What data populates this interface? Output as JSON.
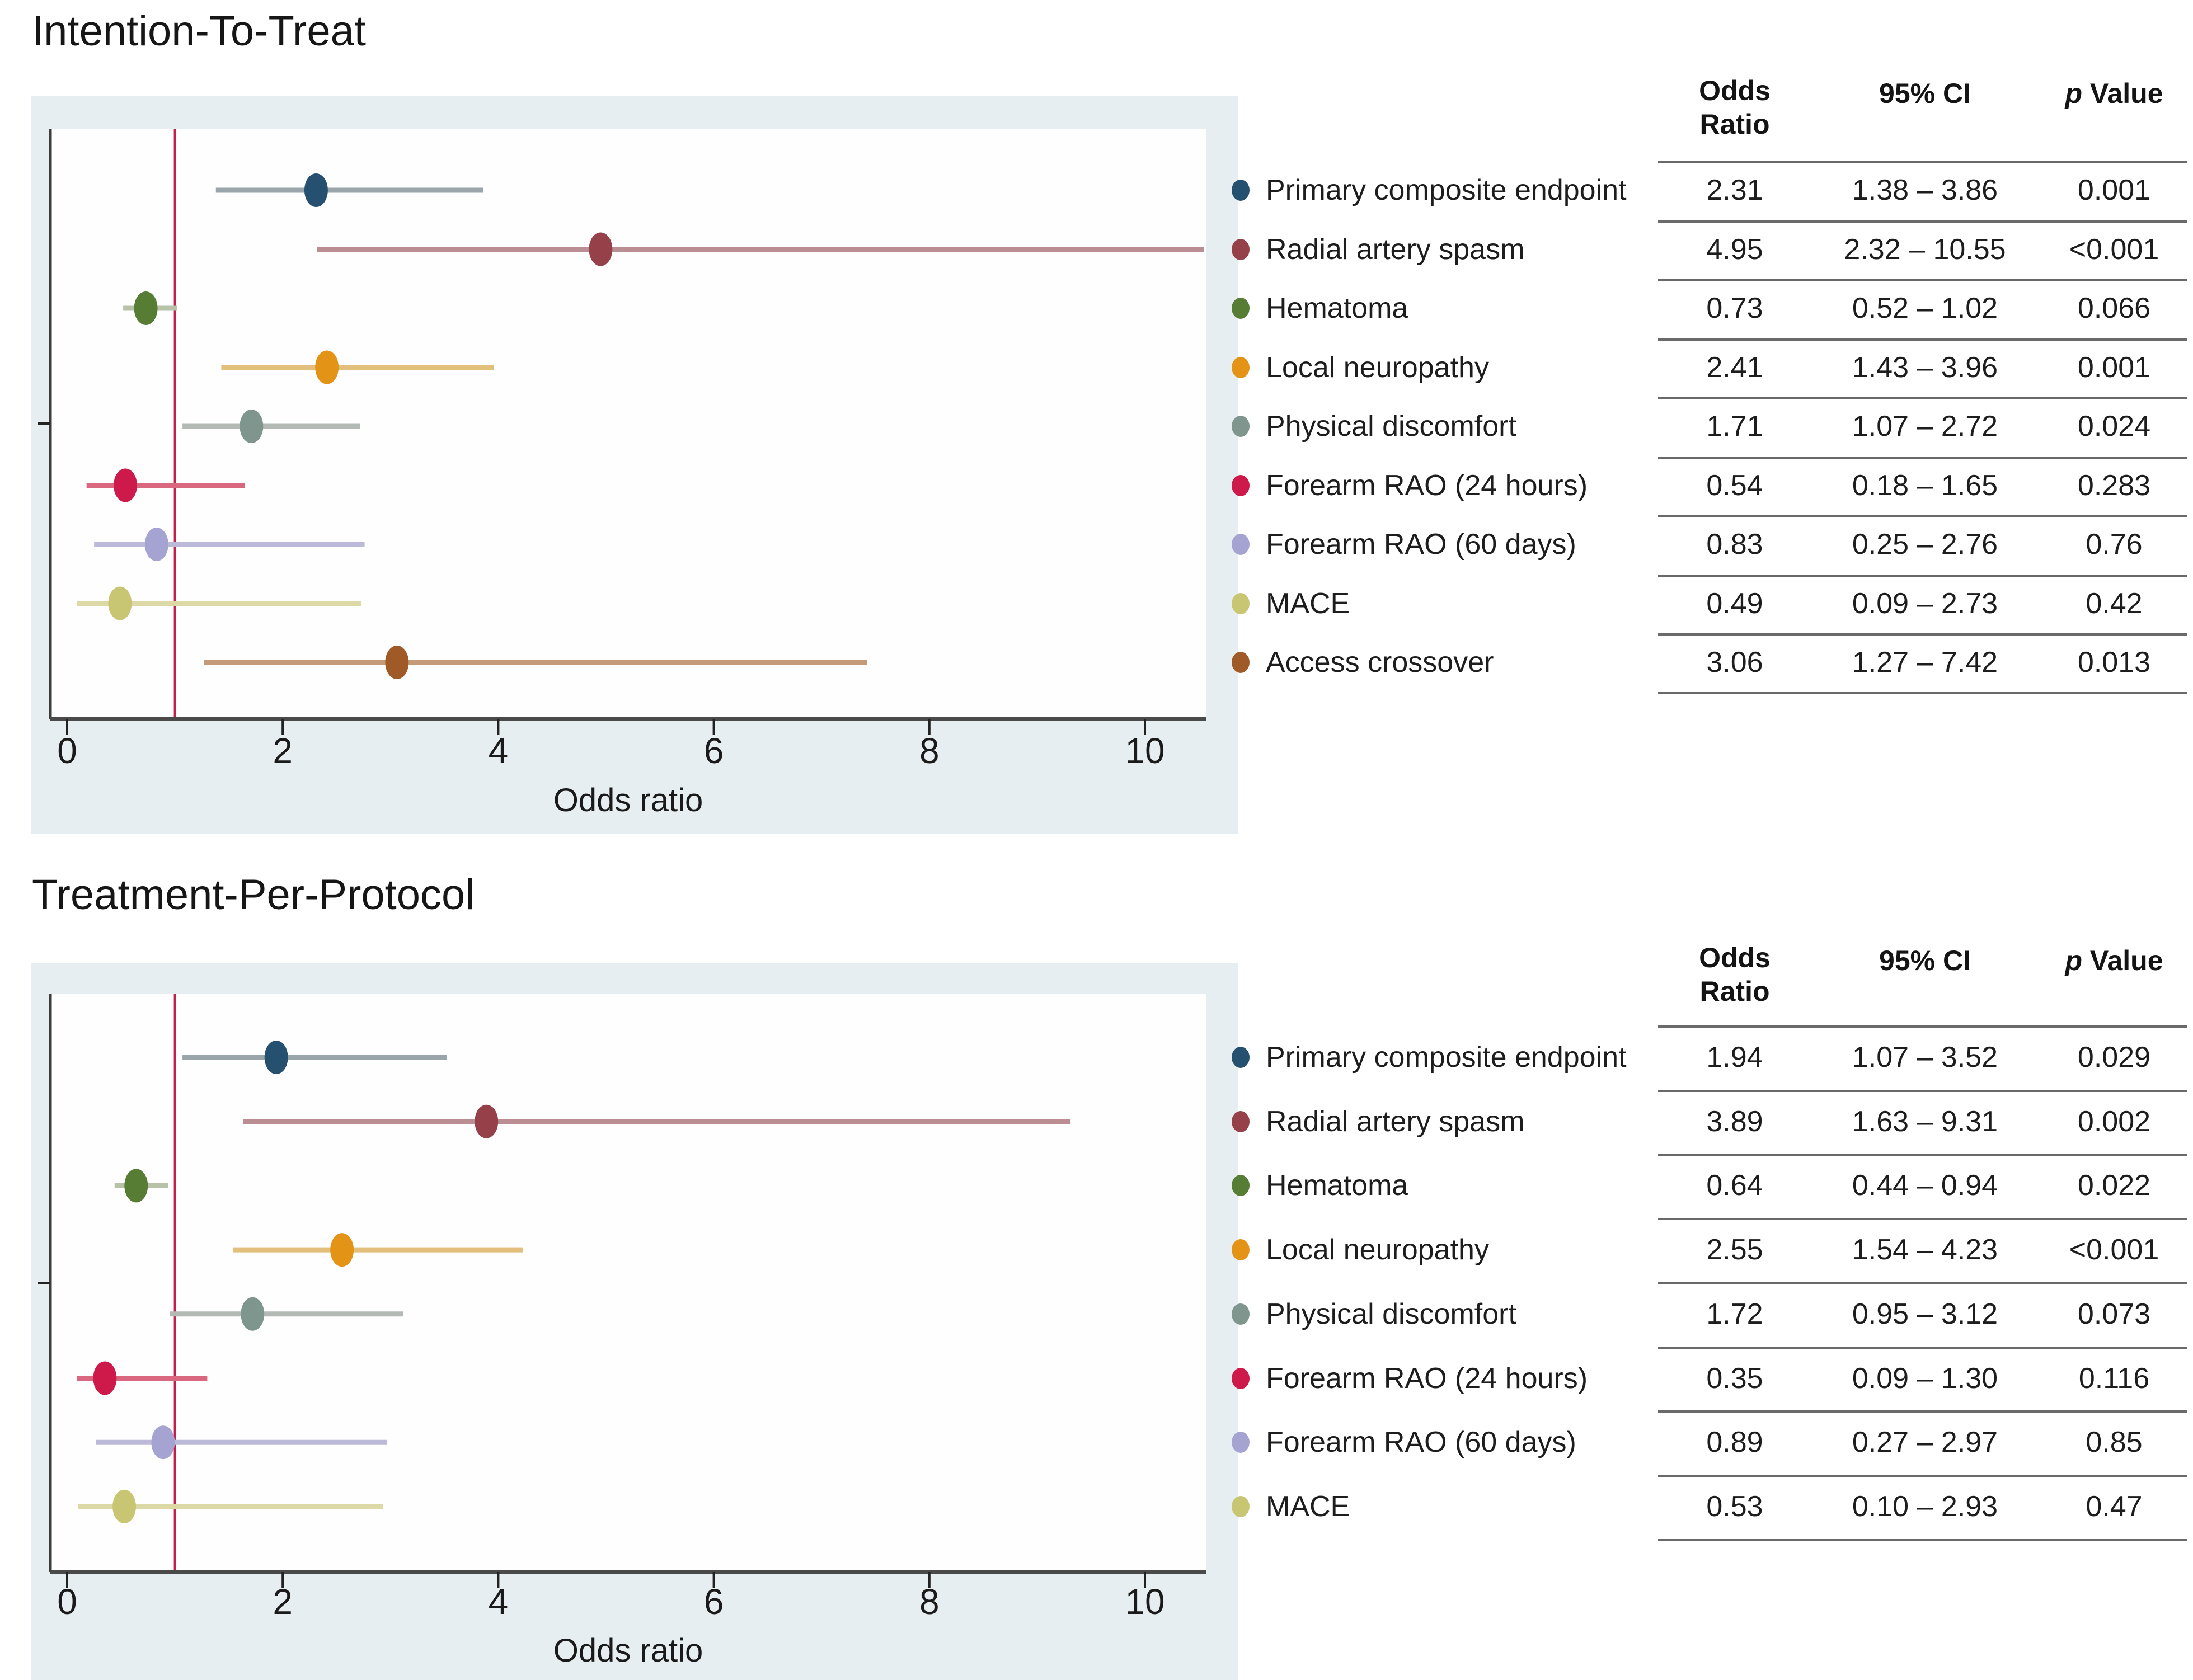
{
  "figure": {
    "panels": [
      {
        "title": "Intention-To-Treat",
        "table_headers": {
          "or": "Odds Ratio",
          "ci": "95% CI",
          "p_italic": "p",
          "p_rest": " Value"
        },
        "rows": [
          {
            "label": "Primary composite endpoint",
            "or_text": "2.31",
            "ci_text": "1.38 – 3.86",
            "p_text": "0.001"
          },
          {
            "label": "Radial artery spasm",
            "or_text": "4.95",
            "ci_text": "2.32 – 10.55",
            "p_text": "<0.001"
          },
          {
            "label": "Hematoma",
            "or_text": "0.73",
            "ci_text": "0.52 – 1.02",
            "p_text": "0.066"
          },
          {
            "label": "Local neuropathy",
            "or_text": "2.41",
            "ci_text": "1.43 – 3.96",
            "p_text": "0.001"
          },
          {
            "label": "Physical discomfort",
            "or_text": "1.71",
            "ci_text": "1.07 – 2.72",
            "p_text": "0.024"
          },
          {
            "label": "Forearm RAO (24 hours)",
            "or_text": "0.54",
            "ci_text": "0.18 – 1.65",
            "p_text": "0.283"
          },
          {
            "label": "Forearm RAO (60 days)",
            "or_text": "0.83",
            "ci_text": "0.25 – 2.76",
            "p_text": "0.76"
          },
          {
            "label": "MACE",
            "or_text": "0.49",
            "ci_text": "0.09 – 2.73",
            "p_text": "0.42"
          },
          {
            "label": "Access crossover",
            "or_text": "3.06",
            "ci_text": "1.27 – 7.42",
            "p_text": "0.013"
          }
        ]
      },
      {
        "title": "Treatment-Per-Protocol",
        "table_headers": {
          "or": "Odds Ratio",
          "ci": "95% CI",
          "p_italic": "p",
          "p_rest": " Value"
        },
        "rows": [
          {
            "label": "Primary composite endpoint",
            "or_text": "1.94",
            "ci_text": "1.07 – 3.52",
            "p_text": "0.029"
          },
          {
            "label": "Radial artery spasm",
            "or_text": "3.89",
            "ci_text": "1.63 – 9.31",
            "p_text": "0.002"
          },
          {
            "label": "Hematoma",
            "or_text": "0.64",
            "ci_text": "0.44 – 0.94",
            "p_text": "0.022"
          },
          {
            "label": "Local neuropathy",
            "or_text": "2.55",
            "ci_text": "1.54 – 4.23",
            "p_text": "<0.001"
          },
          {
            "label": "Physical discomfort",
            "or_text": "1.72",
            "ci_text": "0.95 – 3.12",
            "p_text": "0.073"
          },
          {
            "label": "Forearm RAO (24 hours)",
            "or_text": "0.35",
            "ci_text": "0.09 – 1.30",
            "p_text": "0.116"
          },
          {
            "label": "Forearm RAO (60 days)",
            "or_text": "0.89",
            "ci_text": "0.27 – 2.97",
            "p_text": "0.85"
          },
          {
            "label": "MACE",
            "or_text": "0.53",
            "ci_text": "0.10 – 2.93",
            "p_text": "0.47"
          }
        ]
      }
    ]
  },
  "chart_data": [
    {
      "type": "scatter",
      "subtype": "forest-plot",
      "title": "Intention-To-Treat",
      "xlabel": "Odds ratio",
      "xlim": [
        -0.16,
        10.57
      ],
      "x_ticks": [
        0,
        2,
        4,
        6,
        8,
        10
      ],
      "x_tick_labels": [
        "0",
        "2",
        "4",
        "6",
        "8",
        "10"
      ],
      "grid": false,
      "ref_line_x": 1,
      "ref_line_color": "#c41f4a",
      "plot_bg": "#fefefe",
      "band_bg": "#e7eef1",
      "series": [
        {
          "name": "Primary composite endpoint",
          "or": 2.31,
          "ci_lo": 1.38,
          "ci_hi": 3.86,
          "p": "0.001",
          "marker_color": "#265070",
          "ci_color": "#9aa5ab"
        },
        {
          "name": "Radial artery spasm",
          "or": 4.95,
          "ci_lo": 2.32,
          "ci_hi": 10.55,
          "p": "<0.001",
          "marker_color": "#96404a",
          "ci_color": "#bb8e94"
        },
        {
          "name": "Hematoma",
          "or": 0.73,
          "ci_lo": 0.52,
          "ci_hi": 1.02,
          "p": "0.066",
          "marker_color": "#567d33",
          "ci_color": "#b7c2a8"
        },
        {
          "name": "Local neuropathy",
          "or": 2.41,
          "ci_lo": 1.43,
          "ci_hi": 3.96,
          "p": "0.001",
          "marker_color": "#e39417",
          "ci_color": "#e2bf7a"
        },
        {
          "name": "Physical discomfort",
          "or": 1.71,
          "ci_lo": 1.07,
          "ci_hi": 2.72,
          "p": "0.024",
          "marker_color": "#7e968e",
          "ci_color": "#b3bab6"
        },
        {
          "name": "Forearm RAO (24 hours)",
          "or": 0.54,
          "ci_lo": 0.18,
          "ci_hi": 1.65,
          "p": "0.283",
          "marker_color": "#ce1a4b",
          "ci_color": "#d9677f"
        },
        {
          "name": "Forearm RAO (60 days)",
          "or": 0.83,
          "ci_lo": 0.25,
          "ci_hi": 2.76,
          "p": "0.76",
          "marker_color": "#a5a3d1",
          "ci_color": "#bcbad8"
        },
        {
          "name": "MACE",
          "or": 0.49,
          "ci_lo": 0.09,
          "ci_hi": 2.73,
          "p": "0.42",
          "marker_color": "#c9c673",
          "ci_color": "#dcd9a6"
        },
        {
          "name": "Access crossover",
          "or": 3.06,
          "ci_lo": 1.27,
          "ci_hi": 7.42,
          "p": "0.013",
          "marker_color": "#a05a28",
          "ci_color": "#c49a78"
        }
      ]
    },
    {
      "type": "scatter",
      "subtype": "forest-plot",
      "title": "Treatment-Per-Protocol",
      "xlabel": "Odds ratio",
      "xlim": [
        -0.16,
        10.57
      ],
      "x_ticks": [
        0,
        2,
        4,
        6,
        8,
        10
      ],
      "x_tick_labels": [
        "0",
        "2",
        "4",
        "6",
        "8",
        "10"
      ],
      "grid": false,
      "ref_line_x": 1,
      "ref_line_color": "#c41f4a",
      "plot_bg": "#fefefe",
      "band_bg": "#e7eef1",
      "series": [
        {
          "name": "Primary composite endpoint",
          "or": 1.94,
          "ci_lo": 1.07,
          "ci_hi": 3.52,
          "p": "0.029",
          "marker_color": "#265070",
          "ci_color": "#9aa5ab"
        },
        {
          "name": "Radial artery spasm",
          "or": 3.89,
          "ci_lo": 1.63,
          "ci_hi": 9.31,
          "p": "0.002",
          "marker_color": "#96404a",
          "ci_color": "#bb8e94"
        },
        {
          "name": "Hematoma",
          "or": 0.64,
          "ci_lo": 0.44,
          "ci_hi": 0.94,
          "p": "0.022",
          "marker_color": "#567d33",
          "ci_color": "#b7c2a8"
        },
        {
          "name": "Local neuropathy",
          "or": 2.55,
          "ci_lo": 1.54,
          "ci_hi": 4.23,
          "p": "<0.001",
          "marker_color": "#e39417",
          "ci_color": "#e2bf7a"
        },
        {
          "name": "Physical discomfort",
          "or": 1.72,
          "ci_lo": 0.95,
          "ci_hi": 3.12,
          "p": "0.073",
          "marker_color": "#7e968e",
          "ci_color": "#b3bab6"
        },
        {
          "name": "Forearm RAO (24 hours)",
          "or": 0.35,
          "ci_lo": 0.09,
          "ci_hi": 1.3,
          "p": "0.116",
          "marker_color": "#ce1a4b",
          "ci_color": "#d9677f"
        },
        {
          "name": "Forearm RAO (60 days)",
          "or": 0.89,
          "ci_lo": 0.27,
          "ci_hi": 2.97,
          "p": "0.85",
          "marker_color": "#a5a3d1",
          "ci_color": "#bcbad8"
        },
        {
          "name": "MACE",
          "or": 0.53,
          "ci_lo": 0.1,
          "ci_hi": 2.93,
          "p": "0.47",
          "marker_color": "#c9c673",
          "ci_color": "#dcd9a6"
        }
      ]
    }
  ]
}
